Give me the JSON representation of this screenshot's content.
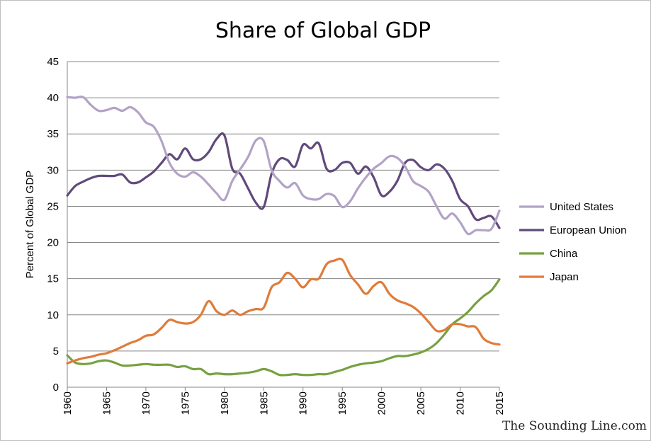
{
  "chart_data": {
    "type": "line",
    "title": "Share of Global GDP",
    "xlabel": "",
    "ylabel": "Percent of Global GDP",
    "xlim": [
      1960,
      2015
    ],
    "ylim": [
      0,
      45
    ],
    "y_ticks": [
      "0",
      "5",
      "10",
      "15",
      "20",
      "25",
      "30",
      "35",
      "40",
      "45"
    ],
    "x_ticks": [
      "1960",
      "1965",
      "1970",
      "1975",
      "1980",
      "1985",
      "1990",
      "1995",
      "2000",
      "2005",
      "2010",
      "2015"
    ],
    "grid": "horizontal",
    "legend_position": "right",
    "x": [
      1960,
      1961,
      1962,
      1963,
      1964,
      1965,
      1966,
      1967,
      1968,
      1969,
      1970,
      1971,
      1972,
      1973,
      1974,
      1975,
      1976,
      1977,
      1978,
      1979,
      1980,
      1981,
      1982,
      1983,
      1984,
      1985,
      1986,
      1987,
      1988,
      1989,
      1990,
      1991,
      1992,
      1993,
      1994,
      1995,
      1996,
      1997,
      1998,
      1999,
      2000,
      2001,
      2002,
      2003,
      2004,
      2005,
      2006,
      2007,
      2008,
      2009,
      2010,
      2011,
      2012,
      2013,
      2014,
      2015
    ],
    "series": [
      {
        "name": "United States",
        "color": "#b3a2c7",
        "values": [
          40.1,
          40.0,
          40.1,
          39.0,
          38.2,
          38.3,
          38.6,
          38.2,
          38.7,
          38.0,
          36.6,
          36.0,
          34.0,
          31.0,
          29.5,
          29.1,
          29.7,
          29.1,
          28.0,
          26.8,
          25.9,
          28.5,
          30.1,
          31.8,
          34.1,
          34.0,
          30.0,
          28.5,
          27.6,
          28.2,
          26.5,
          26.0,
          26.0,
          26.7,
          26.4,
          24.9,
          25.7,
          27.5,
          29.0,
          30.2,
          31.0,
          31.9,
          31.7,
          30.5,
          28.5,
          27.8,
          27.0,
          25.0,
          23.3,
          24.0,
          22.8,
          21.2,
          21.7,
          21.7,
          21.9,
          24.4
        ]
      },
      {
        "name": "European Union",
        "color": "#604a7b",
        "values": [
          26.5,
          27.8,
          28.4,
          28.9,
          29.2,
          29.2,
          29.2,
          29.4,
          28.3,
          28.3,
          29.0,
          29.8,
          31.0,
          32.2,
          31.5,
          33.0,
          31.5,
          31.5,
          32.5,
          34.3,
          34.8,
          30.2,
          29.5,
          27.5,
          25.5,
          24.9,
          29.5,
          31.5,
          31.4,
          30.5,
          33.5,
          33.0,
          33.7,
          30.2,
          30.0,
          31.0,
          31.0,
          29.5,
          30.5,
          29.0,
          26.5,
          27.0,
          28.5,
          31.0,
          31.4,
          30.4,
          30.0,
          30.8,
          30.2,
          28.5,
          26.0,
          25.0,
          23.2,
          23.4,
          23.6,
          22.0
        ]
      },
      {
        "name": "China",
        "color": "#77a140",
        "values": [
          4.4,
          3.4,
          3.2,
          3.3,
          3.6,
          3.7,
          3.4,
          3.0,
          3.0,
          3.1,
          3.2,
          3.1,
          3.1,
          3.1,
          2.8,
          2.9,
          2.5,
          2.5,
          1.8,
          1.9,
          1.8,
          1.8,
          1.9,
          2.0,
          2.2,
          2.5,
          2.2,
          1.7,
          1.7,
          1.8,
          1.7,
          1.7,
          1.8,
          1.8,
          2.1,
          2.4,
          2.8,
          3.1,
          3.3,
          3.4,
          3.6,
          4.0,
          4.3,
          4.3,
          4.5,
          4.8,
          5.3,
          6.1,
          7.3,
          8.7,
          9.5,
          10.4,
          11.6,
          12.6,
          13.4,
          14.9
        ]
      },
      {
        "name": "Japan",
        "color": "#e07b39",
        "values": [
          3.3,
          3.7,
          4.0,
          4.2,
          4.5,
          4.7,
          5.1,
          5.6,
          6.1,
          6.5,
          7.1,
          7.3,
          8.2,
          9.3,
          9.0,
          8.8,
          9.0,
          10.0,
          11.9,
          10.5,
          10.0,
          10.6,
          10.0,
          10.5,
          10.8,
          11.0,
          13.8,
          14.5,
          15.8,
          15.0,
          13.8,
          14.9,
          15.0,
          17.0,
          17.5,
          17.6,
          15.5,
          14.2,
          12.9,
          14.0,
          14.5,
          12.9,
          12.0,
          11.6,
          11.1,
          10.2,
          9.0,
          7.8,
          7.9,
          8.7,
          8.7,
          8.4,
          8.3,
          6.7,
          6.1,
          5.9
        ]
      }
    ]
  },
  "credit": "The Sounding Line.com"
}
